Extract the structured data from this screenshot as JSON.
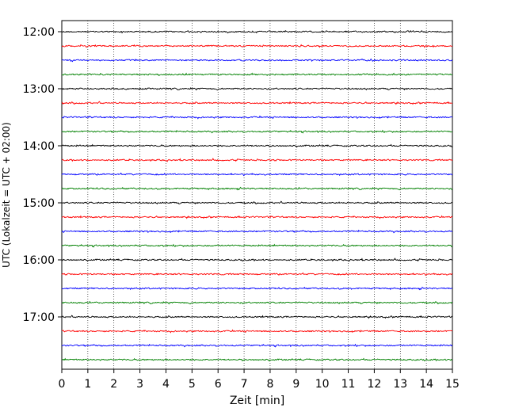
{
  "chart_data": {
    "type": "line",
    "subtype": "helicorder",
    "xlabel": "Zeit  [min]",
    "ylabel": "UTC (Lokalzeit = UTC + 02:00)",
    "xlim": [
      0,
      15
    ],
    "x_ticks": [
      0,
      1,
      2,
      3,
      4,
      5,
      6,
      7,
      8,
      9,
      10,
      11,
      12,
      13,
      14,
      15
    ],
    "x_tick_labels": [
      "0",
      "1",
      "2",
      "3",
      "4",
      "5",
      "6",
      "7",
      "8",
      "9",
      "10",
      "11",
      "12",
      "13",
      "14",
      "15"
    ],
    "row_interval_minutes": 15,
    "y_tick_labels": [
      "12:00",
      "13:00",
      "14:00",
      "15:00",
      "16:00",
      "17:00"
    ],
    "grid": "vertical dotted at each minute",
    "trace_color_cycle": [
      "#000000",
      "#ff0000",
      "#0000ff",
      "#008000"
    ],
    "rows": [
      {
        "start": "12:00"
      },
      {
        "start": "12:15"
      },
      {
        "start": "12:30"
      },
      {
        "start": "12:45"
      },
      {
        "start": "13:00"
      },
      {
        "start": "13:15"
      },
      {
        "start": "13:30"
      },
      {
        "start": "13:45"
      },
      {
        "start": "14:00"
      },
      {
        "start": "14:15"
      },
      {
        "start": "14:30"
      },
      {
        "start": "14:45"
      },
      {
        "start": "15:00"
      },
      {
        "start": "15:15"
      },
      {
        "start": "15:30"
      },
      {
        "start": "15:45"
      },
      {
        "start": "16:00"
      },
      {
        "start": "16:15"
      },
      {
        "start": "16:30"
      },
      {
        "start": "16:45"
      },
      {
        "start": "17:00"
      },
      {
        "start": "17:15"
      },
      {
        "start": "17:30"
      },
      {
        "start": "17:45"
      }
    ]
  }
}
